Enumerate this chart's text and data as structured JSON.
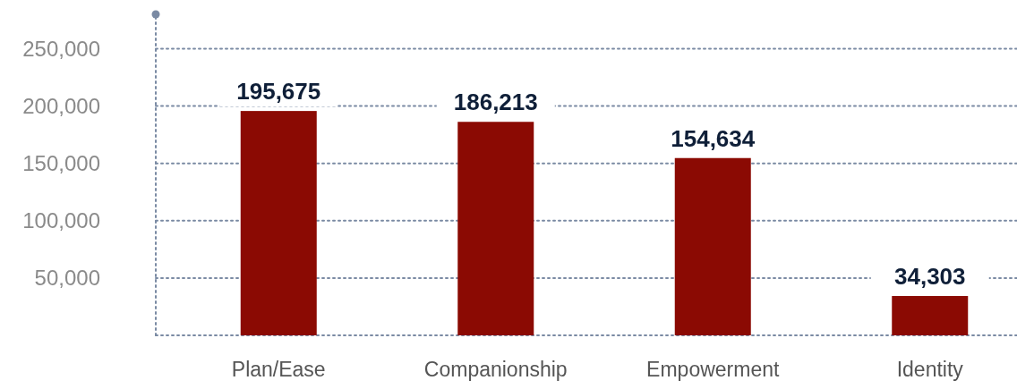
{
  "chart_data": {
    "type": "bar",
    "categories": [
      "Plan/Ease",
      "Companionship",
      "Empowerment",
      "Identity"
    ],
    "values": [
      195675,
      186213,
      154634,
      34303
    ],
    "color": "#8b0a03",
    "ylim": [
      0,
      280000
    ],
    "yticks": [
      {
        "value": 0,
        "label": null
      },
      {
        "value": 50000,
        "label": "50,000"
      },
      {
        "value": 100000,
        "label": "100,000"
      },
      {
        "value": 150000,
        "label": "150,000"
      },
      {
        "value": 200000,
        "label": "200,000"
      },
      {
        "value": 250000,
        "label": "250,000"
      }
    ],
    "grid": "y",
    "value_labels": [
      "195,675",
      "186,213",
      "154,634",
      "34,303"
    ]
  }
}
